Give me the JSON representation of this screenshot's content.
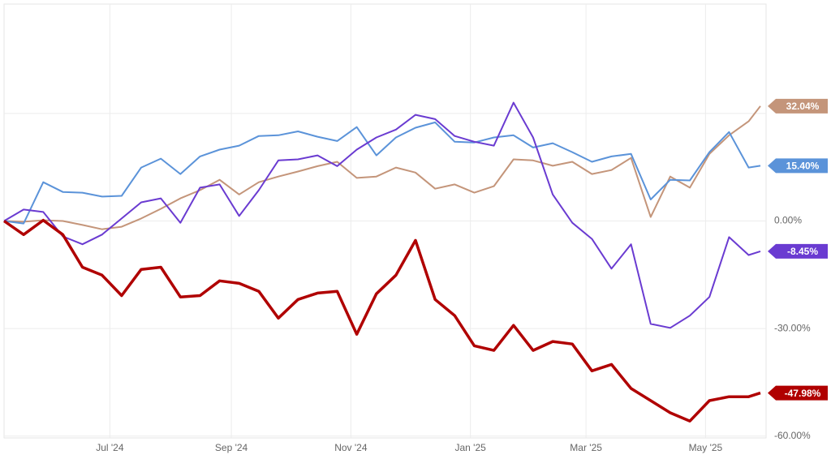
{
  "chart_data": {
    "type": "line",
    "title": "",
    "xlabel": "",
    "ylabel": "",
    "x_start": "2024-05-08",
    "x_end": "2025-05-29",
    "ylim": [
      -60.5,
      60.5
    ],
    "grid": true,
    "x_ticks": [
      {
        "date": "2024-07-01",
        "label": "Jul '24"
      },
      {
        "date": "2024-09-01",
        "label": "Sep '24"
      },
      {
        "date": "2024-11-01",
        "label": "Nov '24"
      },
      {
        "date": "2025-01-01",
        "label": "Jan '25"
      },
      {
        "date": "2025-03-01",
        "label": "Mar '25"
      },
      {
        "date": "2025-05-01",
        "label": "May '25"
      }
    ],
    "y_ticks": [
      {
        "value": 30,
        "label": ""
      },
      {
        "value": 0,
        "label": "0.00%"
      },
      {
        "value": -30,
        "label": "-30.00%"
      },
      {
        "value": -60,
        "label": "-60.00%"
      }
    ],
    "x": [
      "2024-05-08",
      "2024-05-18",
      "2024-05-28",
      "2024-06-07",
      "2024-06-17",
      "2024-06-27",
      "2024-07-07",
      "2024-07-17",
      "2024-07-27",
      "2024-08-06",
      "2024-08-16",
      "2024-08-26",
      "2024-09-05",
      "2024-09-15",
      "2024-09-25",
      "2024-10-05",
      "2024-10-15",
      "2024-10-25",
      "2024-11-04",
      "2024-11-14",
      "2024-11-24",
      "2024-12-04",
      "2024-12-14",
      "2024-12-24",
      "2025-01-03",
      "2025-01-13",
      "2025-01-23",
      "2025-02-02",
      "2025-02-12",
      "2025-02-22",
      "2025-03-04",
      "2025-03-14",
      "2025-03-24",
      "2025-04-03",
      "2025-04-13",
      "2025-04-23",
      "2025-05-03",
      "2025-05-13",
      "2025-05-23",
      "2025-05-29"
    ],
    "series": [
      {
        "color": "#c4957a",
        "width": 2,
        "end_label": "32.04%",
        "values": [
          0,
          -0.2,
          0.2,
          0,
          -1.1,
          -2.3,
          -1.6,
          0.7,
          3.4,
          6.3,
          8.6,
          11.5,
          7.4,
          10.8,
          12.4,
          13.8,
          15.3,
          16.5,
          12,
          12.4,
          14.9,
          13.5,
          9,
          10.2,
          7.9,
          9.7,
          17.2,
          16.9,
          15.4,
          16.5,
          13.1,
          14.2,
          17.6,
          1.1,
          12.4,
          9.3,
          18.7,
          23.9,
          27.8,
          32.04
        ]
      },
      {
        "color": "#5b93d9",
        "width": 2,
        "end_label": "15.40%",
        "values": [
          0,
          -0.7,
          10.8,
          8.1,
          7.9,
          6.8,
          7,
          14.9,
          17.4,
          13.1,
          18,
          19.9,
          21,
          23.7,
          23.9,
          25,
          23.5,
          22.3,
          26.2,
          18.3,
          23.3,
          26,
          27.5,
          22.1,
          21.9,
          23.3,
          23.9,
          20.5,
          21.7,
          19.2,
          16.5,
          18,
          18.7,
          6,
          11.5,
          11.3,
          19.2,
          24.8,
          14.9,
          15.4
        ]
      },
      {
        "color": "#6a3bd1",
        "width": 2,
        "end_label": "-8.45%",
        "values": [
          0,
          3.2,
          2.5,
          -4.3,
          -6.5,
          -3.8,
          0.7,
          5.2,
          6.3,
          -0.5,
          9.3,
          10.2,
          1.4,
          8.6,
          16.9,
          17.2,
          18.3,
          15.3,
          19.9,
          23.3,
          25.5,
          29.6,
          28.4,
          23.7,
          22.1,
          21,
          33,
          23.3,
          7.4,
          -0.5,
          -5,
          -13.3,
          -6.5,
          -28.7,
          -29.8,
          -26.4,
          -21.2,
          -4.5,
          -9.5,
          -8.45
        ]
      },
      {
        "color": "#b00000",
        "width": 3.5,
        "end_label": "-47.98%",
        "values": [
          0,
          -3.8,
          0.2,
          -3.8,
          -12.9,
          -15.1,
          -20.8,
          -13.5,
          -12.9,
          -21.2,
          -20.8,
          -16.7,
          -17.4,
          -19.6,
          -27.1,
          -21.9,
          -20.1,
          -19.6,
          -31.6,
          -20.3,
          -15.1,
          -5.4,
          -21.9,
          -26.4,
          -34.8,
          -36.1,
          -29.1,
          -36.1,
          -33.6,
          -34.3,
          -41.8,
          -40,
          -46.7,
          -50.1,
          -53.5,
          -55.8,
          -50.1,
          -49,
          -49,
          -47.98
        ]
      }
    ]
  }
}
